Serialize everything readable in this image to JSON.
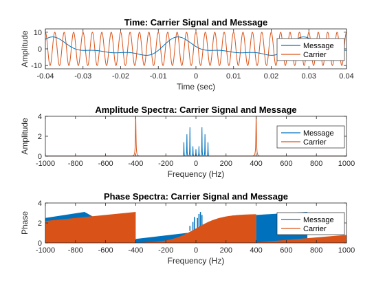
{
  "colors": {
    "message": "#0072BD",
    "carrier": "#D95319"
  },
  "chart_data": [
    {
      "type": "line",
      "title": "Time: Carrier Signal and Message",
      "xlabel": "Time (sec)",
      "ylabel": "Amplitude",
      "xlim": [
        -0.04,
        0.04
      ],
      "ylim": [
        -12,
        12
      ],
      "xticks": [
        -0.04,
        -0.03,
        -0.02,
        -0.01,
        0,
        0.01,
        0.02,
        0.03,
        0.04
      ],
      "xtick_labels": [
        "-0.04",
        "-0.03",
        "-0.02",
        "-0.01",
        "0",
        "0.01",
        "0.02",
        "0.03",
        "0.04"
      ],
      "yticks": [
        -10,
        0,
        10
      ],
      "ytick_labels": [
        "-10",
        "0",
        "10"
      ],
      "legend": {
        "placement": "right",
        "entries": [
          "Message",
          "Carrier"
        ]
      },
      "series": [
        {
          "name": "Message",
          "approx_components": [
            {
              "freq_hz": 30,
              "amplitude": 3.8,
              "phase": 0.6
            },
            {
              "freq_hz": 60,
              "amplitude": 2.4,
              "phase": 1.8
            },
            {
              "freq_hz": 90,
              "amplitude": 1.2,
              "phase": 3.0
            }
          ]
        },
        {
          "name": "Carrier",
          "freq_hz": 400,
          "amplitude": 10
        }
      ]
    },
    {
      "type": "line",
      "title": "Amplitude Spectra: Carrier Signal and Message",
      "xlabel": "Frequency (Hz)",
      "ylabel": "Amplitude",
      "xlim": [
        -1000,
        1000
      ],
      "ylim": [
        0,
        4
      ],
      "xticks": [
        -1000,
        -800,
        -600,
        -400,
        -200,
        0,
        200,
        400,
        600,
        800,
        1000
      ],
      "xtick_labels": [
        "-1000",
        "-800",
        "-600",
        "-400",
        "-200",
        "0",
        "200",
        "400",
        "600",
        "800",
        "1000"
      ],
      "yticks": [
        0,
        2,
        4
      ],
      "ytick_labels": [
        "0",
        "2",
        "4"
      ],
      "legend": {
        "placement": "right",
        "entries": [
          "Message",
          "Carrier"
        ]
      },
      "series": [
        {
          "name": "Message",
          "peaks": [
            {
              "f": -80,
              "a": 1.4
            },
            {
              "f": -60,
              "a": 2.2
            },
            {
              "f": -40,
              "a": 2.9
            },
            {
              "f": -20,
              "a": 1.0
            },
            {
              "f": 0,
              "a": 0.7
            },
            {
              "f": 20,
              "a": 1.0
            },
            {
              "f": 40,
              "a": 2.9
            },
            {
              "f": 60,
              "a": 2.2
            },
            {
              "f": 80,
              "a": 1.4
            }
          ]
        },
        {
          "name": "Carrier",
          "peaks": [
            {
              "f": -400,
              "a": 4.0
            },
            {
              "f": 400,
              "a": 4.0
            }
          ]
        }
      ]
    },
    {
      "type": "area",
      "title": "Phase Spectra: Carrier Signal and Message",
      "xlabel": "Frequency (Hz)",
      "ylabel": "Phase",
      "xlim": [
        -1000,
        1000
      ],
      "ylim": [
        0,
        4
      ],
      "xticks": [
        -1000,
        -800,
        -600,
        -400,
        -200,
        0,
        200,
        400,
        600,
        800,
        1000
      ],
      "xtick_labels": [
        "-1000",
        "-800",
        "-600",
        "-400",
        "-200",
        "0",
        "200",
        "400",
        "600",
        "800",
        "1000"
      ],
      "yticks": [
        0,
        2,
        4
      ],
      "ytick_labels": [
        "0",
        "2",
        "4"
      ],
      "legend": {
        "placement": "right",
        "entries": [
          "Message",
          "Carrier"
        ]
      },
      "series": [
        {
          "name": "Message",
          "band": [
            {
              "f": -1000,
              "phase": 2.5
            },
            {
              "f": -740,
              "phase": 3.1
            },
            {
              "f": -400,
              "phase": 0.4
            },
            {
              "f": 0,
              "phase": 1.1
            },
            {
              "f": 390,
              "phase": 2.9
            },
            {
              "f": 400,
              "phase": 2.8
            },
            {
              "f": 740,
              "phase": 3.1
            }
          ]
        },
        {
          "name": "Carrier",
          "band": [
            {
              "f": -1000,
              "phase": 2.2
            },
            {
              "f": -400,
              "phase": 3.1
            },
            {
              "f": -395,
              "phase": 0.0
            },
            {
              "f": 0,
              "phase": 1.3
            },
            {
              "f": 400,
              "phase": 2.9
            },
            {
              "f": 405,
              "phase": 0.0
            },
            {
              "f": 1000,
              "phase": 0.8
            }
          ]
        }
      ]
    }
  ]
}
